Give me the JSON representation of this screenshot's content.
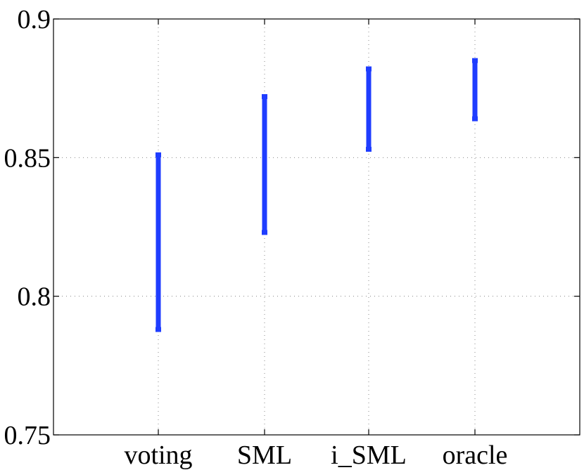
{
  "chart_data": {
    "type": "errorbar",
    "title": "",
    "xlabel": "",
    "ylabel": "",
    "categories": [
      "voting",
      "SML",
      "i_SML",
      "oracle"
    ],
    "ranges": [
      {
        "category": "voting",
        "low": 0.788,
        "high": 0.851
      },
      {
        "category": "SML",
        "low": 0.823,
        "high": 0.872
      },
      {
        "category": "i_SML",
        "low": 0.853,
        "high": 0.882
      },
      {
        "category": "oracle",
        "low": 0.864,
        "high": 0.885
      }
    ],
    "yticks": [
      "0.75",
      "0.8",
      "0.85",
      "0.9"
    ],
    "ylim": [
      0.75,
      0.9
    ],
    "grid": true,
    "color": "#1f3dff"
  }
}
